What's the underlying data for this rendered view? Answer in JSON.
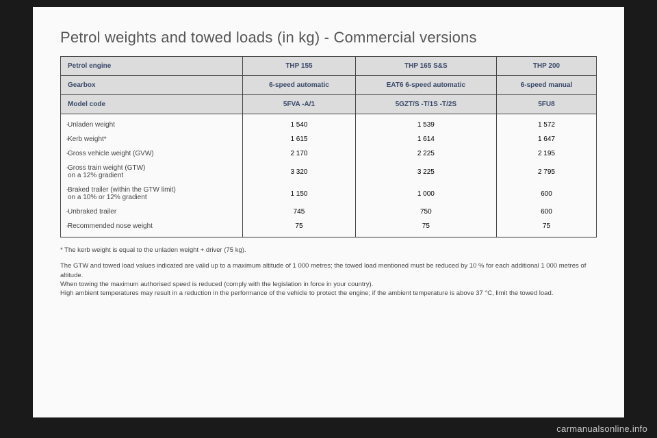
{
  "title": "Petrol weights and towed loads (in kg) - Commercial versions",
  "header": {
    "engine_label": "Petrol engine",
    "gearbox_label": "Gearbox",
    "model_label": "Model code",
    "cols": [
      {
        "engine": "THP 155",
        "gearbox": "6-speed automatic",
        "model": "5FVA -A/1"
      },
      {
        "engine": "THP 165 S&S",
        "gearbox": "EAT6 6-speed automatic",
        "model": "5GZT/S -T/1S -T/2S"
      },
      {
        "engine": "THP 200",
        "gearbox": "6-speed manual",
        "model": "5FU8"
      }
    ]
  },
  "rows": [
    {
      "label": "Unladen weight",
      "v": [
        "1 540",
        "1 539",
        "1 572"
      ]
    },
    {
      "label": "Kerb weight*",
      "v": [
        "1 615",
        "1 614",
        "1 647"
      ]
    },
    {
      "label": "Gross vehicle weight (GVW)",
      "v": [
        "2 170",
        "2 225",
        "2 195"
      ]
    },
    {
      "label": "Gross train weight (GTW)\non a 12% gradient",
      "v": [
        "3 320",
        "3 225",
        "2 795"
      ]
    },
    {
      "label": "Braked trailer (within the GTW limit)\non a 10% or 12% gradient",
      "v": [
        "1 150",
        "1 000",
        "600"
      ]
    },
    {
      "label": "Unbraked trailer",
      "v": [
        "745",
        "750",
        "600"
      ]
    },
    {
      "label": "Recommended nose weight",
      "v": [
        "75",
        "75",
        "75"
      ]
    }
  ],
  "footnote": "* The kerb weight is equal to the unladen weight + driver (75 kg).",
  "bodytext": "The GTW and towed load values indicated are valid up to a maximum altitude of 1 000 metres; the towed load mentioned must be reduced by 10 % for each additional 1 000 metres of altitude.\nWhen towing the maximum authorised speed is reduced (comply with the legislation in force in your country).\nHigh ambient temperatures may result in a reduction in the performance of the vehicle to protect the engine; if the ambient temperature is above 37 °C, limit the towed load.",
  "watermark": "carmanualsonline.info",
  "colors": {
    "page_bg": "#fafafa",
    "outer_bg": "#1a1a1a",
    "header_bg": "#dcdcdc",
    "header_text": "#3a4a6a",
    "border": "#333333",
    "body_text": "#444444",
    "watermark": "#c8c8c8"
  }
}
